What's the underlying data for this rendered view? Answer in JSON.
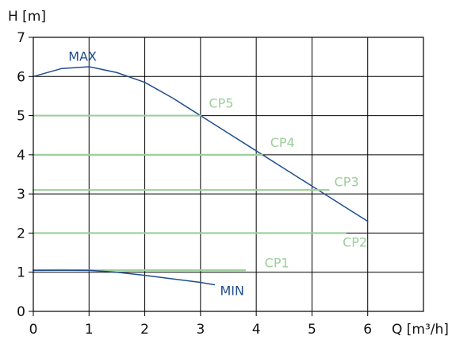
{
  "chart_data": {
    "type": "line",
    "title": "",
    "xlabel": "Q [m³/h]",
    "ylabel": "H [m]",
    "xlim": [
      0,
      7
    ],
    "ylim": [
      0,
      7
    ],
    "x_ticks": [
      0,
      1,
      2,
      3,
      4,
      5,
      6
    ],
    "y_ticks": [
      0,
      1,
      2,
      3,
      4,
      5,
      6,
      7
    ],
    "grid": true,
    "colors": {
      "axis": "#000000",
      "grid": "#000000",
      "curve_blue": "#1f4e8c",
      "curve_green": "#9ccf9a"
    },
    "series": [
      {
        "name": "MAX",
        "color": "#1f4e8c",
        "label_at": [
          0.63,
          6.4
        ],
        "points": [
          [
            0,
            6.0
          ],
          [
            0.5,
            6.2
          ],
          [
            1,
            6.25
          ],
          [
            1.5,
            6.1
          ],
          [
            2,
            5.85
          ],
          [
            2.5,
            5.45
          ],
          [
            3,
            5.0
          ],
          [
            3.5,
            4.55
          ],
          [
            4,
            4.1
          ],
          [
            4.5,
            3.65
          ],
          [
            5,
            3.2
          ],
          [
            5.5,
            2.75
          ],
          [
            6,
            2.3
          ]
        ]
      },
      {
        "name": "CP5",
        "color": "#9ccf9a",
        "label_at": [
          3.15,
          5.2
        ],
        "points": [
          [
            0,
            5.0
          ],
          [
            3.0,
            5.0
          ]
        ]
      },
      {
        "name": "CP4",
        "color": "#9ccf9a",
        "label_at": [
          4.25,
          4.2
        ],
        "points": [
          [
            0,
            4.0
          ],
          [
            4.1,
            4.0
          ]
        ]
      },
      {
        "name": "CP3",
        "color": "#9ccf9a",
        "label_at": [
          5.4,
          3.2
        ],
        "points": [
          [
            0,
            3.1
          ],
          [
            5.3,
            3.1
          ]
        ]
      },
      {
        "name": "CP2",
        "color": "#9ccf9a",
        "label_at": [
          5.55,
          1.65
        ],
        "points": [
          [
            0,
            2.0
          ],
          [
            5.6,
            2.0
          ]
        ]
      },
      {
        "name": "CP1",
        "color": "#9ccf9a",
        "label_at": [
          4.15,
          1.13
        ],
        "points": [
          [
            0,
            1.05
          ],
          [
            0.5,
            1.06
          ],
          [
            1,
            1.05
          ],
          [
            1.5,
            1.05
          ],
          [
            2,
            1.05
          ],
          [
            2.5,
            1.05
          ],
          [
            3,
            1.05
          ],
          [
            3.5,
            1.05
          ],
          [
            3.8,
            1.05
          ]
        ]
      },
      {
        "name": "MIN",
        "color": "#1f4e8c",
        "label_at": [
          3.35,
          0.42
        ],
        "points": [
          [
            0,
            1.05
          ],
          [
            0.5,
            1.05
          ],
          [
            1,
            1.05
          ],
          [
            1.5,
            1.0
          ],
          [
            2,
            0.92
          ],
          [
            2.5,
            0.83
          ],
          [
            3,
            0.74
          ],
          [
            3.25,
            0.68
          ]
        ]
      }
    ]
  }
}
